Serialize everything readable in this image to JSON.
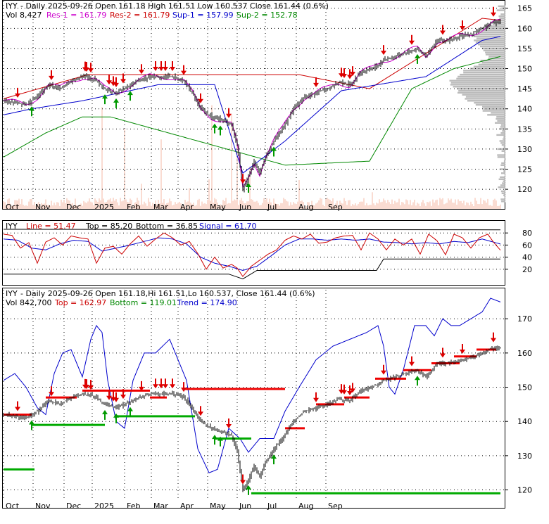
{
  "chart_data": [
    {
      "type": "candlestick",
      "panel": "price-sr",
      "header": {
        "symbol": "IYY",
        "info": " - Daily 2025-09-26 Open 161.18   High 161.51   Low 160.537   Close 161.44 (0.6%)",
        "vol": "Vol 8,427",
        "res1": "Res-1 = 161.79",
        "res2": "Res-2 = 161.79",
        "sup1": "Sup-1 = 157.99",
        "sup2": "Sup-2 = 152.78"
      },
      "ylim": [
        116,
        166
      ],
      "yticks": [
        "120",
        "125",
        "130",
        "135",
        "140",
        "145",
        "150",
        "155",
        "160",
        "165"
      ],
      "xticks": [
        "Oct",
        "Nov",
        "Dec",
        "2025",
        "Feb",
        "Mar",
        "Apr",
        "May",
        "Jun",
        "Jul",
        "Aug",
        "Sep"
      ],
      "close_anchors": [
        [
          0,
          142
        ],
        [
          8,
          141.5
        ],
        [
          16,
          141
        ],
        [
          24,
          143
        ],
        [
          32,
          146
        ],
        [
          40,
          145
        ],
        [
          48,
          147
        ],
        [
          56,
          148
        ],
        [
          64,
          147.5
        ],
        [
          72,
          145
        ],
        [
          80,
          144
        ],
        [
          88,
          145.5
        ],
        [
          96,
          147
        ],
        [
          104,
          148
        ],
        [
          112,
          148
        ],
        [
          120,
          148
        ],
        [
          128,
          147
        ],
        [
          134,
          144
        ],
        [
          140,
          140
        ],
        [
          148,
          138
        ],
        [
          156,
          137
        ],
        [
          162,
          136
        ],
        [
          166,
          131
        ],
        [
          170,
          120
        ],
        [
          174,
          123
        ],
        [
          178,
          127
        ],
        [
          182,
          124
        ],
        [
          186,
          128
        ],
        [
          192,
          132
        ],
        [
          198,
          135
        ],
        [
          206,
          140
        ],
        [
          214,
          143
        ],
        [
          222,
          144
        ],
        [
          230,
          145
        ],
        [
          238,
          146.5
        ],
        [
          246,
          146
        ],
        [
          254,
          149
        ],
        [
          262,
          150
        ],
        [
          270,
          152
        ],
        [
          278,
          153
        ],
        [
          286,
          154
        ],
        [
          294,
          155
        ],
        [
          300,
          153
        ],
        [
          308,
          157
        ],
        [
          316,
          157
        ],
        [
          324,
          158
        ],
        [
          332,
          158.5
        ],
        [
          340,
          160
        ],
        [
          348,
          161.5
        ],
        [
          353,
          161.44
        ]
      ],
      "res_line": [
        [
          0,
          142.5
        ],
        [
          60,
          148.5
        ],
        [
          210,
          148.5
        ],
        [
          260,
          145
        ],
        [
          340,
          162.5
        ],
        [
          353,
          162
        ]
      ],
      "sup1_line": [
        [
          0,
          138.5
        ],
        [
          20,
          140
        ],
        [
          56,
          142
        ],
        [
          110,
          146
        ],
        [
          150,
          146
        ],
        [
          170,
          124
        ],
        [
          200,
          132
        ],
        [
          240,
          144.5
        ],
        [
          300,
          148
        ],
        [
          340,
          157
        ],
        [
          353,
          158
        ]
      ],
      "sup2_line": [
        [
          0,
          128
        ],
        [
          30,
          134
        ],
        [
          56,
          138
        ],
        [
          76,
          138
        ],
        [
          200,
          126
        ],
        [
          260,
          127
        ],
        [
          290,
          145
        ],
        [
          320,
          150
        ],
        [
          353,
          153
        ]
      ],
      "sell_arrow_index": [
        10,
        34,
        58,
        59,
        62,
        75,
        78,
        80,
        85,
        98,
        108,
        112,
        115,
        120,
        128,
        140,
        160,
        170,
        222,
        240,
        242,
        246,
        248,
        270,
        290,
        312,
        326,
        348
      ],
      "buy_arrow_index": [
        20,
        72,
        80,
        90,
        150,
        154,
        174,
        192,
        294
      ]
    },
    {
      "type": "line",
      "panel": "oscillator",
      "header": {
        "symbol": "IYY",
        "line": "Line = 51.47",
        "top": "Top = 85.20",
        "bottom": "Bottom = 36.85",
        "signal": "Signal = 61.70"
      },
      "ylim": [
        0,
        100
      ],
      "yticks": [
        "20",
        "40",
        "60",
        "80"
      ],
      "top_line": [
        [
          0,
          86
        ],
        [
          353,
          85.2
        ]
      ],
      "bottom_line": [
        [
          0,
          12
        ],
        [
          80,
          12
        ],
        [
          160,
          12
        ],
        [
          170,
          4
        ],
        [
          180,
          18
        ],
        [
          265,
          18
        ],
        [
          270,
          37
        ],
        [
          353,
          36.85
        ]
      ],
      "line_anchors": [
        [
          0,
          78
        ],
        [
          6,
          76
        ],
        [
          12,
          55
        ],
        [
          18,
          64
        ],
        [
          24,
          30
        ],
        [
          30,
          65
        ],
        [
          36,
          72
        ],
        [
          42,
          60
        ],
        [
          48,
          75
        ],
        [
          54,
          72
        ],
        [
          60,
          70
        ],
        [
          66,
          30
        ],
        [
          72,
          55
        ],
        [
          78,
          58
        ],
        [
          84,
          45
        ],
        [
          90,
          62
        ],
        [
          96,
          75
        ],
        [
          102,
          58
        ],
        [
          108,
          70
        ],
        [
          114,
          80
        ],
        [
          120,
          72
        ],
        [
          126,
          60
        ],
        [
          132,
          66
        ],
        [
          138,
          46
        ],
        [
          144,
          20
        ],
        [
          150,
          40
        ],
        [
          156,
          22
        ],
        [
          162,
          28
        ],
        [
          166,
          22
        ],
        [
          170,
          8
        ],
        [
          176,
          25
        ],
        [
          182,
          35
        ],
        [
          188,
          45
        ],
        [
          194,
          52
        ],
        [
          200,
          68
        ],
        [
          206,
          75
        ],
        [
          212,
          70
        ],
        [
          218,
          78
        ],
        [
          224,
          63
        ],
        [
          230,
          65
        ],
        [
          236,
          72
        ],
        [
          242,
          75
        ],
        [
          248,
          76
        ],
        [
          254,
          52
        ],
        [
          260,
          80
        ],
        [
          266,
          70
        ],
        [
          272,
          52
        ],
        [
          278,
          70
        ],
        [
          284,
          60
        ],
        [
          290,
          70
        ],
        [
          296,
          45
        ],
        [
          302,
          78
        ],
        [
          308,
          67
        ],
        [
          314,
          44
        ],
        [
          320,
          78
        ],
        [
          326,
          72
        ],
        [
          332,
          55
        ],
        [
          338,
          72
        ],
        [
          344,
          78
        ],
        [
          348,
          65
        ],
        [
          353,
          51.47
        ]
      ],
      "signal_anchors": [
        [
          0,
          70
        ],
        [
          10,
          68
        ],
        [
          20,
          55
        ],
        [
          30,
          52
        ],
        [
          40,
          62
        ],
        [
          50,
          68
        ],
        [
          60,
          66
        ],
        [
          70,
          50
        ],
        [
          80,
          55
        ],
        [
          90,
          60
        ],
        [
          100,
          66
        ],
        [
          110,
          72
        ],
        [
          120,
          70
        ],
        [
          130,
          62
        ],
        [
          140,
          40
        ],
        [
          150,
          30
        ],
        [
          160,
          25
        ],
        [
          170,
          18
        ],
        [
          180,
          25
        ],
        [
          190,
          42
        ],
        [
          200,
          60
        ],
        [
          210,
          70
        ],
        [
          220,
          70
        ],
        [
          230,
          68
        ],
        [
          240,
          70
        ],
        [
          250,
          68
        ],
        [
          260,
          70
        ],
        [
          270,
          65
        ],
        [
          280,
          64
        ],
        [
          290,
          62
        ],
        [
          300,
          64
        ],
        [
          310,
          62
        ],
        [
          320,
          66
        ],
        [
          330,
          64
        ],
        [
          340,
          70
        ],
        [
          353,
          61.7
        ]
      ]
    },
    {
      "type": "candlestick",
      "panel": "price-trend",
      "header": {
        "symbol": "IYY",
        "info": " - Daily 2025-09-26 Open 161.18,Hi 161.51,Lo 160.537, Close 161.44 (0.6%)",
        "vol": "Vol 842,700",
        "top": "Top = 162.97",
        "bottom": "Bottom = 119.01",
        "trend": "Trend = 174.90"
      },
      "ylim": [
        116,
        178
      ],
      "yticks": [
        "120",
        "130",
        "140",
        "150",
        "160",
        "170"
      ],
      "xticks": [
        "Oct",
        "Nov",
        "Dec",
        "2025",
        "Feb",
        "Mar",
        "Apr",
        "May",
        "Jun",
        "Jul",
        "Aug",
        "Sep"
      ],
      "band_anchors": [
        [
          0,
          152
        ],
        [
          8,
          154
        ],
        [
          16,
          150
        ],
        [
          24,
          144
        ],
        [
          30,
          142
        ],
        [
          36,
          154
        ],
        [
          42,
          160
        ],
        [
          48,
          161
        ],
        [
          56,
          153
        ],
        [
          62,
          164
        ],
        [
          66,
          168
        ],
        [
          70,
          166
        ],
        [
          74,
          152
        ],
        [
          80,
          140
        ],
        [
          86,
          138
        ],
        [
          92,
          152
        ],
        [
          100,
          160
        ],
        [
          108,
          160
        ],
        [
          118,
          164
        ],
        [
          124,
          158
        ],
        [
          130,
          152
        ],
        [
          138,
          132
        ],
        [
          146,
          125
        ],
        [
          152,
          126
        ],
        [
          160,
          138
        ],
        [
          168,
          135
        ],
        [
          174,
          131
        ],
        [
          182,
          135
        ],
        [
          192,
          135
        ],
        [
          200,
          143
        ],
        [
          210,
          150
        ],
        [
          222,
          158
        ],
        [
          234,
          162
        ],
        [
          246,
          164
        ],
        [
          258,
          166
        ],
        [
          266,
          168
        ],
        [
          270,
          162
        ],
        [
          274,
          150
        ],
        [
          278,
          148
        ],
        [
          284,
          155
        ],
        [
          292,
          168
        ],
        [
          300,
          168
        ],
        [
          306,
          165
        ],
        [
          312,
          170
        ],
        [
          318,
          168
        ],
        [
          324,
          168
        ],
        [
          332,
          170
        ],
        [
          340,
          172
        ],
        [
          346,
          176
        ],
        [
          353,
          174.9
        ]
      ],
      "red_segments": [
        [
          0,
          20,
          142
        ],
        [
          30,
          52,
          147
        ],
        [
          56,
          104,
          149
        ],
        [
          104,
          116,
          147
        ],
        [
          128,
          200,
          149.5
        ],
        [
          200,
          214,
          138
        ],
        [
          222,
          242,
          145
        ],
        [
          242,
          260,
          147
        ],
        [
          264,
          286,
          152.5
        ],
        [
          284,
          304,
          155
        ],
        [
          304,
          324,
          157
        ],
        [
          320,
          336,
          159
        ],
        [
          336,
          350,
          161
        ]
      ],
      "green_segments": [
        [
          0,
          22,
          126
        ],
        [
          20,
          72,
          139
        ],
        [
          80,
          136,
          141.5
        ],
        [
          150,
          176,
          135
        ],
        [
          176,
          353,
          119
        ]
      ]
    }
  ]
}
